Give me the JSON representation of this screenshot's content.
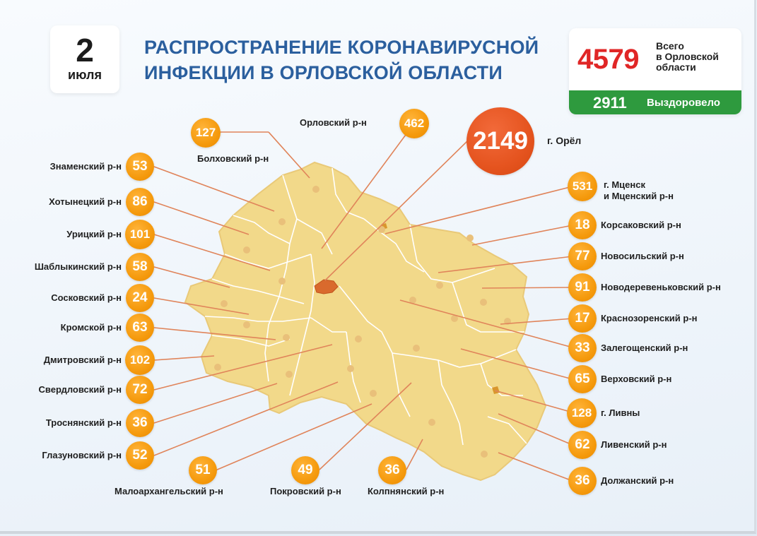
{
  "date": {
    "day": "2",
    "month": "июля"
  },
  "title_line1": "РАСПРОСТРАНЕНИЕ КОРОНАВИРУСНОЙ",
  "title_line2": "ИНФЕКЦИИ В ОРЛОВСКОЙ ОБЛАСТИ",
  "total": {
    "value": "4579",
    "label_line1": "Всего",
    "label_line2": "в Орловской",
    "label_line3": "области"
  },
  "recovered": {
    "value": "2911",
    "label": "Выздоровело"
  },
  "colors": {
    "title": "#2b5f9e",
    "total": "#e02626",
    "recovered_bg": "#2e9a3e",
    "badge": "#f59a0d",
    "city_badge": "#e5541f",
    "map_fill": "#f2d98a",
    "map_border": "#ffffff",
    "leader": "#e0845a"
  },
  "city": {
    "name": "г. Орёл",
    "value": "2149"
  },
  "districts": {
    "znamensky": {
      "name": "Знаменский р-н",
      "value": "53"
    },
    "khotynetsky": {
      "name": "Хотынецкий р-н",
      "value": "86"
    },
    "uritsky": {
      "name": "Урицкий р-н",
      "value": "101"
    },
    "shablykinsky": {
      "name": "Шаблыкинский р-н",
      "value": "58"
    },
    "sosnovsky": {
      "name": "Сосковский р-н",
      "value": "24"
    },
    "kromskoy": {
      "name": "Кромской р-н",
      "value": "63"
    },
    "dmitrovsky": {
      "name": "Дмитровский р-н",
      "value": "102"
    },
    "sverdlovsky": {
      "name": "Свердловский р-н",
      "value": "72"
    },
    "trosnyansky": {
      "name": "Троснянский р-н",
      "value": "36"
    },
    "glazunovsky": {
      "name": "Глазуновский р-н",
      "value": "52"
    },
    "bolkhovsky": {
      "name": "Болховский р-н",
      "value": "127"
    },
    "orlovsky": {
      "name": "Орловский р-н",
      "value": "462"
    },
    "mtsensk": {
      "name_line1": "г. Мценск",
      "name_line2": "и Мценский р-н",
      "value": "531"
    },
    "korsakovsky": {
      "name": "Корсаковский р-н",
      "value": "18"
    },
    "novosilsky": {
      "name": "Новосильский р-н",
      "value": "77"
    },
    "novoderevenkovsky": {
      "name": "Новодеревеньковский р-н",
      "value": "91"
    },
    "krasnozorensky": {
      "name": "Краснозоренский р-н",
      "value": "17"
    },
    "zaleghoshchensky": {
      "name": "Залегощенский р-н",
      "value": "33"
    },
    "verkhovsky": {
      "name": "Верховский р-н",
      "value": "65"
    },
    "livny": {
      "name": "г. Ливны",
      "value": "128"
    },
    "livensky": {
      "name": "Ливенский р-н",
      "value": "62"
    },
    "dolzhansky": {
      "name": "Должанский р-н",
      "value": "36"
    },
    "maloarkhangelsky": {
      "name": "Малоархангельский р-н",
      "value": "51"
    },
    "pokrovsky": {
      "name": "Покровский р-н",
      "value": "49"
    },
    "kolpnyansky": {
      "name": "Колпнянский р-н",
      "value": "36"
    }
  }
}
